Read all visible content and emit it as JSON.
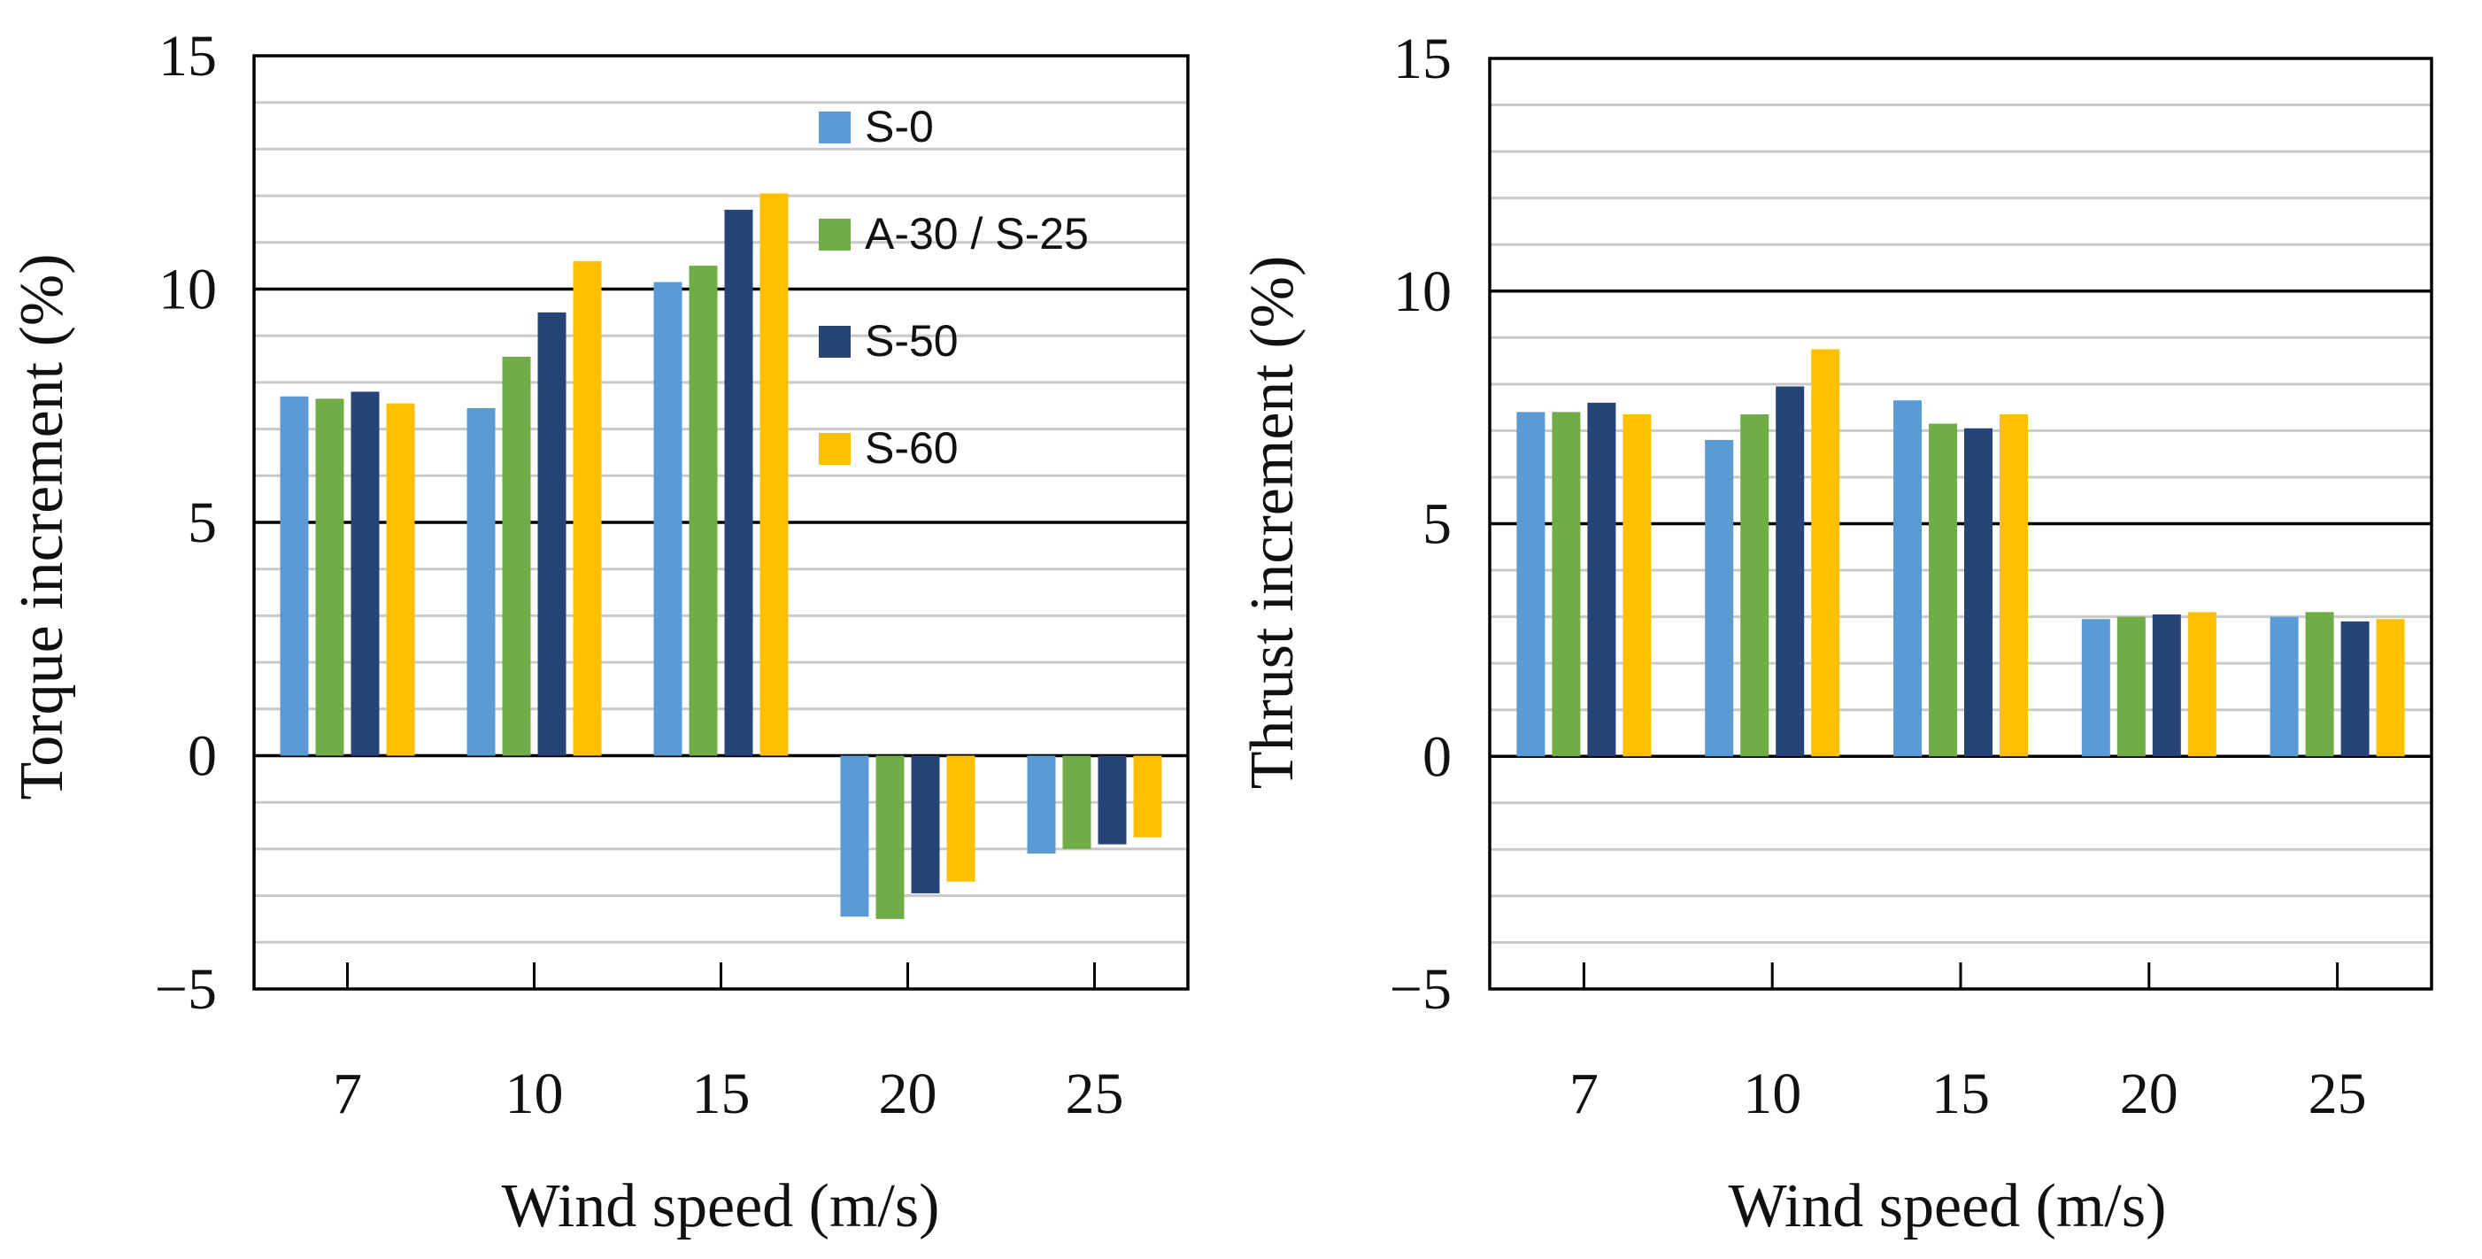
{
  "chart_data": [
    {
      "type": "bar",
      "title": "",
      "xlabel": "Wind speed (m/s)",
      "ylabel": "Torque increment (%)",
      "ylim": [
        -5,
        15
      ],
      "y_ticks": [
        15,
        10,
        5,
        0,
        -5
      ],
      "y_tick_labels": [
        "15",
        "10",
        "5",
        "0",
        "−5"
      ],
      "minor_grid_step": 1,
      "categories": [
        "7",
        "10",
        "15",
        "20",
        "25"
      ],
      "legend": "top-right inside plot",
      "series": [
        {
          "name": "S-0",
          "values": [
            7.7,
            7.45,
            10.15,
            -3.45,
            -2.1
          ]
        },
        {
          "name": "A-30 / S-25",
          "values": [
            7.65,
            8.55,
            10.5,
            -3.5,
            -2.0
          ]
        },
        {
          "name": "S-50",
          "values": [
            7.8,
            9.5,
            11.7,
            -2.95,
            -1.9
          ]
        },
        {
          "name": "S-60",
          "values": [
            7.55,
            10.6,
            12.05,
            -2.7,
            -1.75
          ]
        }
      ]
    },
    {
      "type": "bar",
      "title": "",
      "xlabel": "Wind speed (m/s)",
      "ylabel": "Thrust increment (%)",
      "ylim": [
        -5,
        15
      ],
      "y_ticks": [
        15,
        10,
        5,
        0,
        -5
      ],
      "y_tick_labels": [
        "15",
        "10",
        "5",
        "0",
        "−5"
      ],
      "minor_grid_step": 1,
      "categories": [
        "7",
        "10",
        "15",
        "20",
        "25"
      ],
      "legend": "none",
      "series": [
        {
          "name": "S-0",
          "values": [
            7.4,
            6.8,
            7.65,
            2.95,
            3.0
          ]
        },
        {
          "name": "A-30 / S-25",
          "values": [
            7.4,
            7.35,
            7.15,
            3.0,
            3.1
          ]
        },
        {
          "name": "S-50",
          "values": [
            7.6,
            7.95,
            7.05,
            3.05,
            2.9
          ]
        },
        {
          "name": "S-60",
          "values": [
            7.35,
            8.75,
            7.35,
            3.1,
            2.95
          ]
        }
      ]
    }
  ],
  "series_colors": [
    "#5B9BD5",
    "#70AD47",
    "#264478",
    "#FFC000"
  ]
}
